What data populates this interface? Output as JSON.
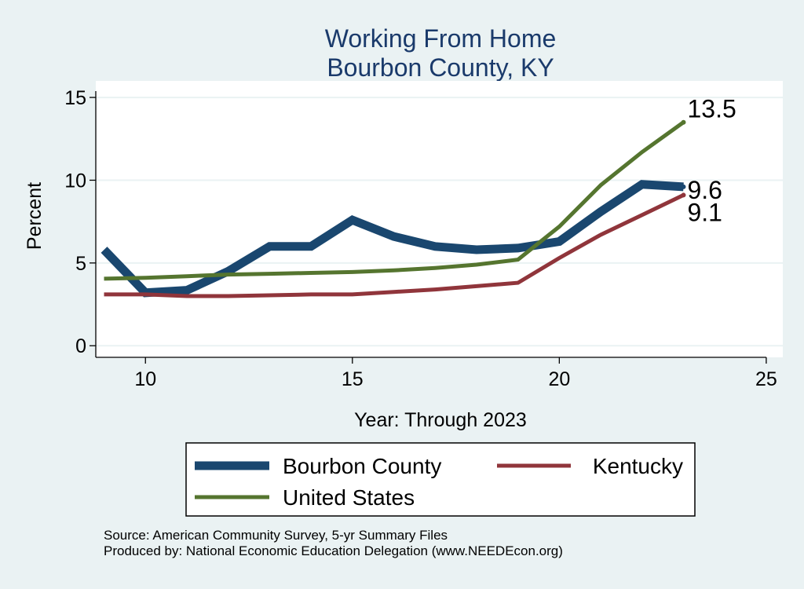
{
  "chart_data": {
    "type": "line",
    "title": "Working From Home",
    "subtitle": "Bourbon County, KY",
    "xlabel": "Year: Through 2023",
    "ylabel": "Percent",
    "xlim": [
      8.8,
      25.4
    ],
    "ylim": [
      -0.7,
      16
    ],
    "xticks": [
      10,
      15,
      20,
      25
    ],
    "yticks": [
      0,
      5,
      10,
      15
    ],
    "grid": true,
    "legend_position": "bottom",
    "series": [
      {
        "name": "Bourbon County",
        "color": "#1a476f",
        "x": [
          9,
          10,
          11,
          12,
          13,
          14,
          15,
          16,
          17,
          18,
          19,
          20,
          21,
          22,
          23
        ],
        "y": [
          5.8,
          3.2,
          3.35,
          4.5,
          6.0,
          6.0,
          7.6,
          6.6,
          6.0,
          5.8,
          5.9,
          6.3,
          8.1,
          9.75,
          9.6
        ],
        "end_label": "9.6"
      },
      {
        "name": "Kentucky",
        "color": "#90353b",
        "x": [
          9,
          10,
          11,
          12,
          13,
          14,
          15,
          16,
          17,
          18,
          19,
          20,
          21,
          22,
          23
        ],
        "y": [
          3.1,
          3.1,
          3.0,
          3.0,
          3.05,
          3.1,
          3.1,
          3.25,
          3.4,
          3.6,
          3.8,
          5.3,
          6.7,
          7.9,
          9.1
        ],
        "end_label": "9.1"
      },
      {
        "name": "United States",
        "color": "#55752f",
        "x": [
          9,
          10,
          11,
          12,
          13,
          14,
          15,
          16,
          17,
          18,
          19,
          20,
          21,
          22,
          23
        ],
        "y": [
          4.05,
          4.1,
          4.2,
          4.3,
          4.35,
          4.4,
          4.45,
          4.55,
          4.7,
          4.9,
          5.2,
          7.2,
          9.7,
          11.7,
          13.5
        ],
        "end_label": "13.5"
      }
    ]
  },
  "source_line": "Source: American Community Survey, 5-yr Summary Files",
  "produced_line": "Produced by: National Economic Education Delegation (www.NEEDEcon.org)"
}
